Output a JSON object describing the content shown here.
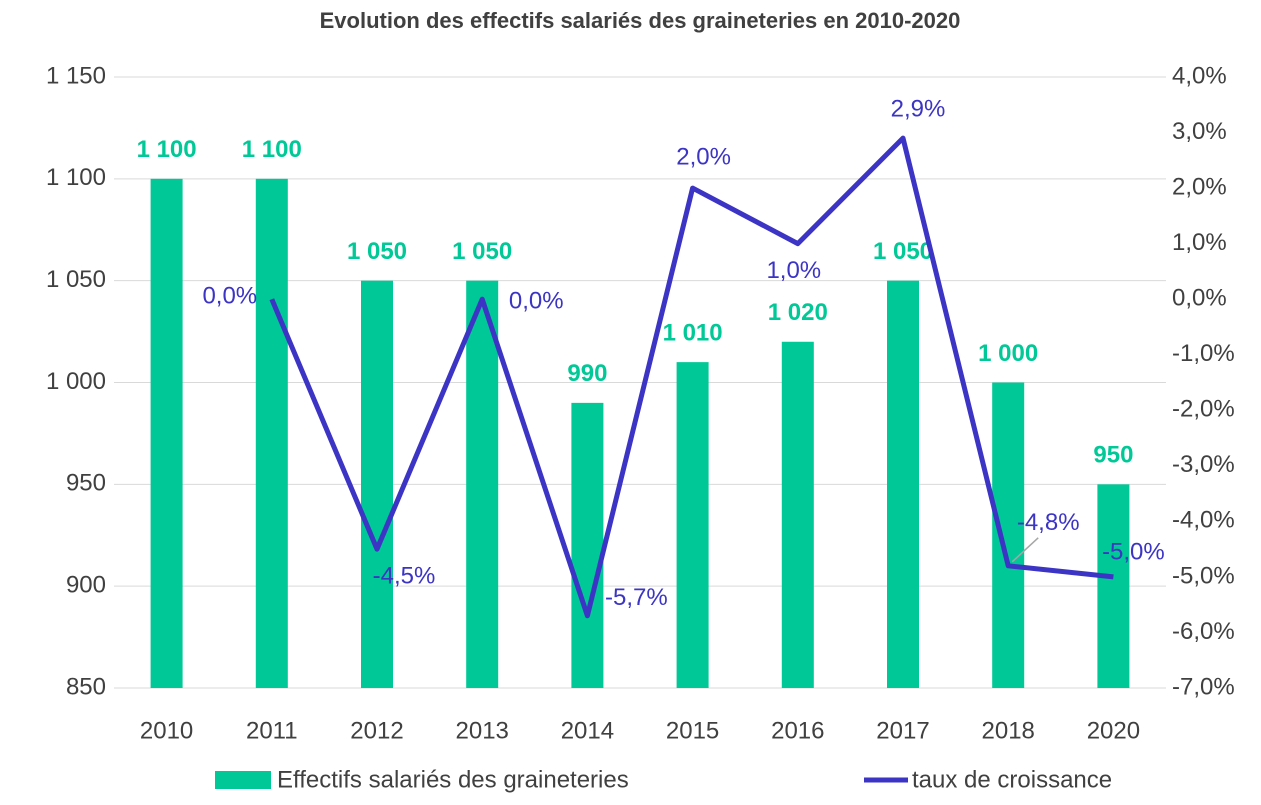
{
  "chart_data": {
    "type": "combo",
    "title": "Evolution des effectifs salariés des graineteries en 2010-2020",
    "categories": [
      "2010",
      "2011",
      "2012",
      "2013",
      "2014",
      "2015",
      "2016",
      "2017",
      "2018",
      "2020"
    ],
    "series": [
      {
        "name": "Effectifs salariés des graineteries",
        "type": "bar",
        "color": "#00c896",
        "values": [
          1100,
          1100,
          1050,
          1050,
          990,
          1010,
          1020,
          1050,
          1000,
          950
        ],
        "value_labels": [
          "1 100",
          "1 100",
          "1 050",
          "1 050",
          "990",
          "1 010",
          "1 020",
          "1 050",
          "1 000",
          "950"
        ]
      },
      {
        "name": "taux de croissance",
        "type": "line",
        "axis": "y2",
        "color": "#3c34c4",
        "values": [
          null,
          0.0,
          -4.5,
          0.0,
          -5.7,
          2.0,
          1.0,
          2.9,
          -4.8,
          -5.0
        ],
        "value_labels": [
          null,
          "0,0%",
          "-4,5%",
          "0,0%",
          "-5,7%",
          "2,0%",
          "1,0%",
          "2,9%",
          "-4,8%",
          "-5,0%"
        ]
      }
    ],
    "ylim": [
      850,
      1150
    ],
    "yticks": [
      850,
      900,
      950,
      {
        "value": 1000,
        "label": "1 000"
      },
      {
        "value": 1050,
        "label": "1 050"
      },
      {
        "value": 1100,
        "label": "1 100"
      },
      {
        "value": 1150,
        "label": "1 150"
      }
    ],
    "y2lim": [
      -7,
      4
    ],
    "y2ticks": [
      {
        "value": -7,
        "label": "-7,0%"
      },
      {
        "value": -6,
        "label": "-6,0%"
      },
      {
        "value": -5,
        "label": "-5,0%"
      },
      {
        "value": -4,
        "label": "-4,0%"
      },
      {
        "value": -3,
        "label": "-3,0%"
      },
      {
        "value": -2,
        "label": "-2,0%"
      },
      {
        "value": -1,
        "label": "-1,0%"
      },
      {
        "value": 0,
        "label": "0,0%"
      },
      {
        "value": 1,
        "label": "1,0%"
      },
      {
        "value": 2,
        "label": "2,0%"
      },
      {
        "value": 3,
        "label": "3,0%"
      },
      {
        "value": 4,
        "label": "4,0%"
      }
    ],
    "grid": true,
    "legend": "bottom"
  }
}
